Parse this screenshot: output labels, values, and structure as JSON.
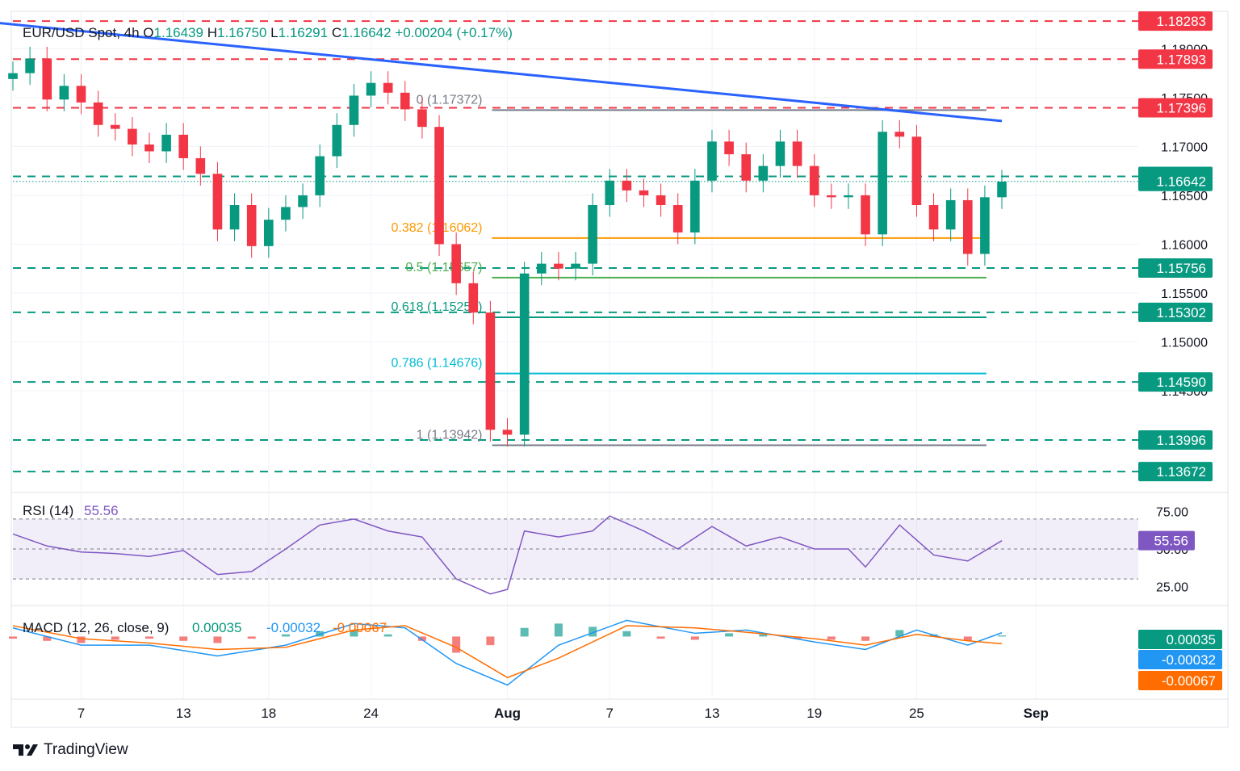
{
  "header": {
    "symbol": "EUR/USD Spot",
    "timeframe": "4h",
    "o_label": "O",
    "o_value": "1.16439",
    "h_label": "H",
    "h_value": "1.16750",
    "l_label": "L",
    "l_value": "1.16291",
    "c_label": "C",
    "c_value": "1.16642",
    "change": "+0.00204 (+0.17%)"
  },
  "brand": "TradingView",
  "colors": {
    "up": "#089981",
    "down": "#f23645",
    "trend": "#2962ff",
    "fib382": "#ff9800",
    "fib05": "#4caf50",
    "fib618": "#089981",
    "fib786": "#00bcd4",
    "fibgray": "#787b86",
    "rsi": "#7e57c2",
    "macd": "#2196f3",
    "signal": "#ff6d00"
  },
  "chart_data": [
    {
      "type": "candlestick",
      "title": "EUR/USD Spot, 4h",
      "ylim": [
        1.135,
        1.1835
      ],
      "y_ticks": [
        "1.18000",
        "1.17500",
        "1.17000",
        "1.16500",
        "1.16000",
        "1.15500",
        "1.15000",
        "1.14500"
      ],
      "y_tick_values": [
        1.18,
        1.175,
        1.17,
        1.165,
        1.16,
        1.155,
        1.15,
        1.145
      ],
      "x_ticks": [
        "7",
        "13",
        "18",
        "24",
        "Aug",
        "7",
        "13",
        "19",
        "25",
        "Sep"
      ],
      "x_tick_dates": [
        "2025-07-07",
        "2025-07-13",
        "2025-07-18",
        "2025-07-24",
        "2025-08-01",
        "2025-08-07",
        "2025-08-13",
        "2025-08-19",
        "2025-08-25",
        "2025-09-01"
      ],
      "x_range": [
        "2025-07-03",
        "2025-09-07"
      ],
      "candles": [
        {
          "x": "2025-07-03",
          "c": 1.1775
        },
        {
          "x": "2025-07-04",
          "c": 1.179
        },
        {
          "x": "2025-07-05",
          "c": 1.1748
        },
        {
          "x": "2025-07-06",
          "c": 1.1762
        },
        {
          "x": "2025-07-07",
          "c": 1.1745
        },
        {
          "x": "2025-07-08",
          "c": 1.1722
        },
        {
          "x": "2025-07-09",
          "c": 1.1718
        },
        {
          "x": "2025-07-10",
          "c": 1.1702
        },
        {
          "x": "2025-07-11",
          "c": 1.1695
        },
        {
          "x": "2025-07-12",
          "c": 1.1712
        },
        {
          "x": "2025-07-13",
          "c": 1.1688
        },
        {
          "x": "2025-07-14",
          "c": 1.1672
        },
        {
          "x": "2025-07-15",
          "c": 1.1615
        },
        {
          "x": "2025-07-16",
          "c": 1.164
        },
        {
          "x": "2025-07-17",
          "c": 1.1598
        },
        {
          "x": "2025-07-18",
          "c": 1.1625
        },
        {
          "x": "2025-07-19",
          "c": 1.1638
        },
        {
          "x": "2025-07-20",
          "c": 1.165
        },
        {
          "x": "2025-07-21",
          "c": 1.169
        },
        {
          "x": "2025-07-22",
          "c": 1.1722
        },
        {
          "x": "2025-07-23",
          "c": 1.1752
        },
        {
          "x": "2025-07-24",
          "c": 1.1765
        },
        {
          "x": "2025-07-25",
          "c": 1.1755
        },
        {
          "x": "2025-07-26",
          "c": 1.1738
        },
        {
          "x": "2025-07-27",
          "c": 1.172
        },
        {
          "x": "2025-07-28",
          "c": 1.16
        },
        {
          "x": "2025-07-29",
          "c": 1.156
        },
        {
          "x": "2025-07-30",
          "c": 1.153
        },
        {
          "x": "2025-07-31",
          "c": 1.141
        },
        {
          "x": "2025-08-01",
          "c": 1.1405
        },
        {
          "x": "2025-08-02",
          "c": 1.157
        },
        {
          "x": "2025-08-03",
          "c": 1.158
        },
        {
          "x": "2025-08-04",
          "c": 1.1575
        },
        {
          "x": "2025-08-05",
          "c": 1.158
        },
        {
          "x": "2025-08-06",
          "c": 1.164
        },
        {
          "x": "2025-08-07",
          "c": 1.1665
        },
        {
          "x": "2025-08-08",
          "c": 1.1655
        },
        {
          "x": "2025-08-09",
          "c": 1.165
        },
        {
          "x": "2025-08-10",
          "c": 1.164
        },
        {
          "x": "2025-08-11",
          "c": 1.1612
        },
        {
          "x": "2025-08-12",
          "c": 1.1665
        },
        {
          "x": "2025-08-13",
          "c": 1.1705
        },
        {
          "x": "2025-08-14",
          "c": 1.1692
        },
        {
          "x": "2025-08-15",
          "c": 1.1665
        },
        {
          "x": "2025-08-16",
          "c": 1.168
        },
        {
          "x": "2025-08-17",
          "c": 1.1705
        },
        {
          "x": "2025-08-18",
          "c": 1.168
        },
        {
          "x": "2025-08-19",
          "c": 1.165
        },
        {
          "x": "2025-08-20",
          "c": 1.1648
        },
        {
          "x": "2025-08-21",
          "c": 1.165
        },
        {
          "x": "2025-08-22",
          "c": 1.161
        },
        {
          "x": "2025-08-23",
          "c": 1.1715
        },
        {
          "x": "2025-08-24",
          "c": 1.171
        },
        {
          "x": "2025-08-25",
          "c": 1.164
        },
        {
          "x": "2025-08-26",
          "c": 1.1615
        },
        {
          "x": "2025-08-27",
          "c": 1.1645
        },
        {
          "x": "2025-08-28",
          "c": 1.159
        },
        {
          "x": "2025-08-29",
          "c": 1.1648
        },
        {
          "x": "2025-08-30",
          "c": 1.1664
        }
      ],
      "price_levels": [
        {
          "label": "1.18283",
          "value": 1.18283,
          "color": "#f23645",
          "style": "dashed"
        },
        {
          "label": "1.17893",
          "value": 1.17893,
          "color": "#f23645",
          "style": "dashed"
        },
        {
          "label": "1.17396",
          "value": 1.17396,
          "color": "#f23645",
          "style": "dashed"
        },
        {
          "label": "1.16693",
          "value": 1.16693,
          "color": "#089981",
          "style": "dashed"
        },
        {
          "label": "1.16642",
          "value": 1.16642,
          "color": "#089981",
          "style": "dotted"
        },
        {
          "label": "1.15756",
          "value": 1.15756,
          "color": "#089981",
          "style": "dashed"
        },
        {
          "label": "1.15302",
          "value": 1.15302,
          "color": "#089981",
          "style": "dashed"
        },
        {
          "label": "1.14590",
          "value": 1.1459,
          "color": "#089981",
          "style": "dashed"
        },
        {
          "label": "1.13996",
          "value": 1.13996,
          "color": "#089981",
          "style": "dashed"
        },
        {
          "label": "1.13672",
          "value": 1.13672,
          "color": "#089981",
          "style": "dashed"
        }
      ],
      "fib_levels": [
        {
          "label": "0 (1.17372)",
          "value": 1.17372,
          "color": "#787b86"
        },
        {
          "label": "0.382 (1.16062)",
          "value": 1.16062,
          "color": "#ff9800"
        },
        {
          "label": "0.5 (1.15657)",
          "value": 1.15657,
          "color": "#4caf50"
        },
        {
          "label": "0.618 (1.15252)",
          "value": 1.15252,
          "color": "#089981"
        },
        {
          "label": "0.786 (1.14676)",
          "value": 1.14676,
          "color": "#00bcd4"
        },
        {
          "label": "1 (1.13942)",
          "value": 1.13942,
          "color": "#787b86"
        }
      ],
      "fib_range": [
        "2025-08-01",
        "2025-08-29"
      ],
      "trendline": {
        "from": {
          "x": "2025-07-01",
          "y": 1.18283
        },
        "to": {
          "x": "2025-08-30",
          "y": 1.1726
        }
      }
    },
    {
      "type": "line",
      "title": "RSI (14)",
      "value_label": "55.56",
      "ylim": [
        15,
        85
      ],
      "y_ticks": [
        "75.00",
        "50.00",
        "25.00"
      ],
      "y_tick_values": [
        75,
        50,
        25
      ],
      "band": [
        30,
        70
      ],
      "series": [
        {
          "name": "RSI (14)",
          "values": [
            {
              "x": "2025-07-03",
              "y": 60
            },
            {
              "x": "2025-07-05",
              "y": 52
            },
            {
              "x": "2025-07-07",
              "y": 48
            },
            {
              "x": "2025-07-09",
              "y": 47
            },
            {
              "x": "2025-07-11",
              "y": 45
            },
            {
              "x": "2025-07-13",
              "y": 49
            },
            {
              "x": "2025-07-15",
              "y": 33
            },
            {
              "x": "2025-07-17",
              "y": 35
            },
            {
              "x": "2025-07-19",
              "y": 50
            },
            {
              "x": "2025-07-21",
              "y": 66
            },
            {
              "x": "2025-07-23",
              "y": 70
            },
            {
              "x": "2025-07-25",
              "y": 62
            },
            {
              "x": "2025-07-27",
              "y": 58
            },
            {
              "x": "2025-07-29",
              "y": 30
            },
            {
              "x": "2025-07-31",
              "y": 20
            },
            {
              "x": "2025-08-01",
              "y": 23
            },
            {
              "x": "2025-08-02",
              "y": 62
            },
            {
              "x": "2025-08-04",
              "y": 58
            },
            {
              "x": "2025-08-06",
              "y": 62
            },
            {
              "x": "2025-08-07",
              "y": 72
            },
            {
              "x": "2025-08-09",
              "y": 62
            },
            {
              "x": "2025-08-11",
              "y": 50
            },
            {
              "x": "2025-08-13",
              "y": 65
            },
            {
              "x": "2025-08-15",
              "y": 52
            },
            {
              "x": "2025-08-17",
              "y": 58
            },
            {
              "x": "2025-08-19",
              "y": 50
            },
            {
              "x": "2025-08-21",
              "y": 50
            },
            {
              "x": "2025-08-22",
              "y": 38
            },
            {
              "x": "2025-08-24",
              "y": 66
            },
            {
              "x": "2025-08-26",
              "y": 46
            },
            {
              "x": "2025-08-28",
              "y": 42
            },
            {
              "x": "2025-08-30",
              "y": 55.56
            }
          ]
        }
      ]
    },
    {
      "type": "line",
      "title": "MACD (12, 26, close, 9)",
      "values_text": [
        "0.00035",
        "-0.00032",
        "-0.00067"
      ],
      "ylim": [
        -0.0055,
        0.0025
      ],
      "series": [
        {
          "name": "MACD",
          "values": [
            {
              "x": "2025-07-03",
              "y": 0.0008
            },
            {
              "x": "2025-07-07",
              "y": -0.0008
            },
            {
              "x": "2025-07-11",
              "y": -0.0008
            },
            {
              "x": "2025-07-15",
              "y": -0.0018
            },
            {
              "x": "2025-07-19",
              "y": -0.0008
            },
            {
              "x": "2025-07-23",
              "y": 0.0012
            },
            {
              "x": "2025-07-26",
              "y": 0.0008
            },
            {
              "x": "2025-07-29",
              "y": -0.0025
            },
            {
              "x": "2025-08-01",
              "y": -0.0045
            },
            {
              "x": "2025-08-04",
              "y": -0.0008
            },
            {
              "x": "2025-08-08",
              "y": 0.0015
            },
            {
              "x": "2025-08-12",
              "y": 0.0003
            },
            {
              "x": "2025-08-15",
              "y": 0.0006
            },
            {
              "x": "2025-08-19",
              "y": -0.0005
            },
            {
              "x": "2025-08-22",
              "y": -0.0012
            },
            {
              "x": "2025-08-25",
              "y": 0.0006
            },
            {
              "x": "2025-08-28",
              "y": -0.0008
            },
            {
              "x": "2025-08-30",
              "y": 0.00035
            }
          ]
        },
        {
          "name": "Signal",
          "values": [
            {
              "x": "2025-07-03",
              "y": 0.001
            },
            {
              "x": "2025-07-07",
              "y": -0.0002
            },
            {
              "x": "2025-07-11",
              "y": -0.0006
            },
            {
              "x": "2025-07-15",
              "y": -0.0012
            },
            {
              "x": "2025-07-19",
              "y": -0.001
            },
            {
              "x": "2025-07-23",
              "y": 0.0006
            },
            {
              "x": "2025-07-26",
              "y": 0.001
            },
            {
              "x": "2025-07-29",
              "y": -0.001
            },
            {
              "x": "2025-08-01",
              "y": -0.0038
            },
            {
              "x": "2025-08-04",
              "y": -0.002
            },
            {
              "x": "2025-08-08",
              "y": 0.001
            },
            {
              "x": "2025-08-12",
              "y": 0.0008
            },
            {
              "x": "2025-08-15",
              "y": 0.0004
            },
            {
              "x": "2025-08-19",
              "y": -0.0002
            },
            {
              "x": "2025-08-22",
              "y": -0.0008
            },
            {
              "x": "2025-08-25",
              "y": 0.0002
            },
            {
              "x": "2025-08-28",
              "y": -0.0004
            },
            {
              "x": "2025-08-30",
              "y": -0.00067
            }
          ]
        }
      ],
      "histogram": [
        {
          "x": "2025-07-03",
          "y": -0.0002
        },
        {
          "x": "2025-07-05",
          "y": -0.0004
        },
        {
          "x": "2025-07-07",
          "y": -0.0006
        },
        {
          "x": "2025-07-09",
          "y": -0.0003
        },
        {
          "x": "2025-07-11",
          "y": -0.0002
        },
        {
          "x": "2025-07-13",
          "y": -0.0004
        },
        {
          "x": "2025-07-15",
          "y": -0.0006
        },
        {
          "x": "2025-07-17",
          "y": -0.0002
        },
        {
          "x": "2025-07-19",
          "y": 0.0002
        },
        {
          "x": "2025-07-21",
          "y": 0.0005
        },
        {
          "x": "2025-07-23",
          "y": 0.0006
        },
        {
          "x": "2025-07-25",
          "y": 0.0002
        },
        {
          "x": "2025-07-27",
          "y": -0.0004
        },
        {
          "x": "2025-07-29",
          "y": -0.0015
        },
        {
          "x": "2025-07-31",
          "y": -0.0008
        },
        {
          "x": "2025-08-02",
          "y": 0.0008
        },
        {
          "x": "2025-08-04",
          "y": 0.0012
        },
        {
          "x": "2025-08-06",
          "y": 0.0009
        },
        {
          "x": "2025-08-08",
          "y": 0.0005
        },
        {
          "x": "2025-08-10",
          "y": -0.0002
        },
        {
          "x": "2025-08-12",
          "y": -0.0003
        },
        {
          "x": "2025-08-14",
          "y": 0.0003
        },
        {
          "x": "2025-08-16",
          "y": 0.0002
        },
        {
          "x": "2025-08-18",
          "y": -0.0002
        },
        {
          "x": "2025-08-20",
          "y": -0.0003
        },
        {
          "x": "2025-08-22",
          "y": -0.0004
        },
        {
          "x": "2025-08-24",
          "y": 0.0006
        },
        {
          "x": "2025-08-26",
          "y": 0.0002
        },
        {
          "x": "2025-08-28",
          "y": -0.0004
        },
        {
          "x": "2025-08-30",
          "y": 0.0001
        }
      ]
    }
  ]
}
